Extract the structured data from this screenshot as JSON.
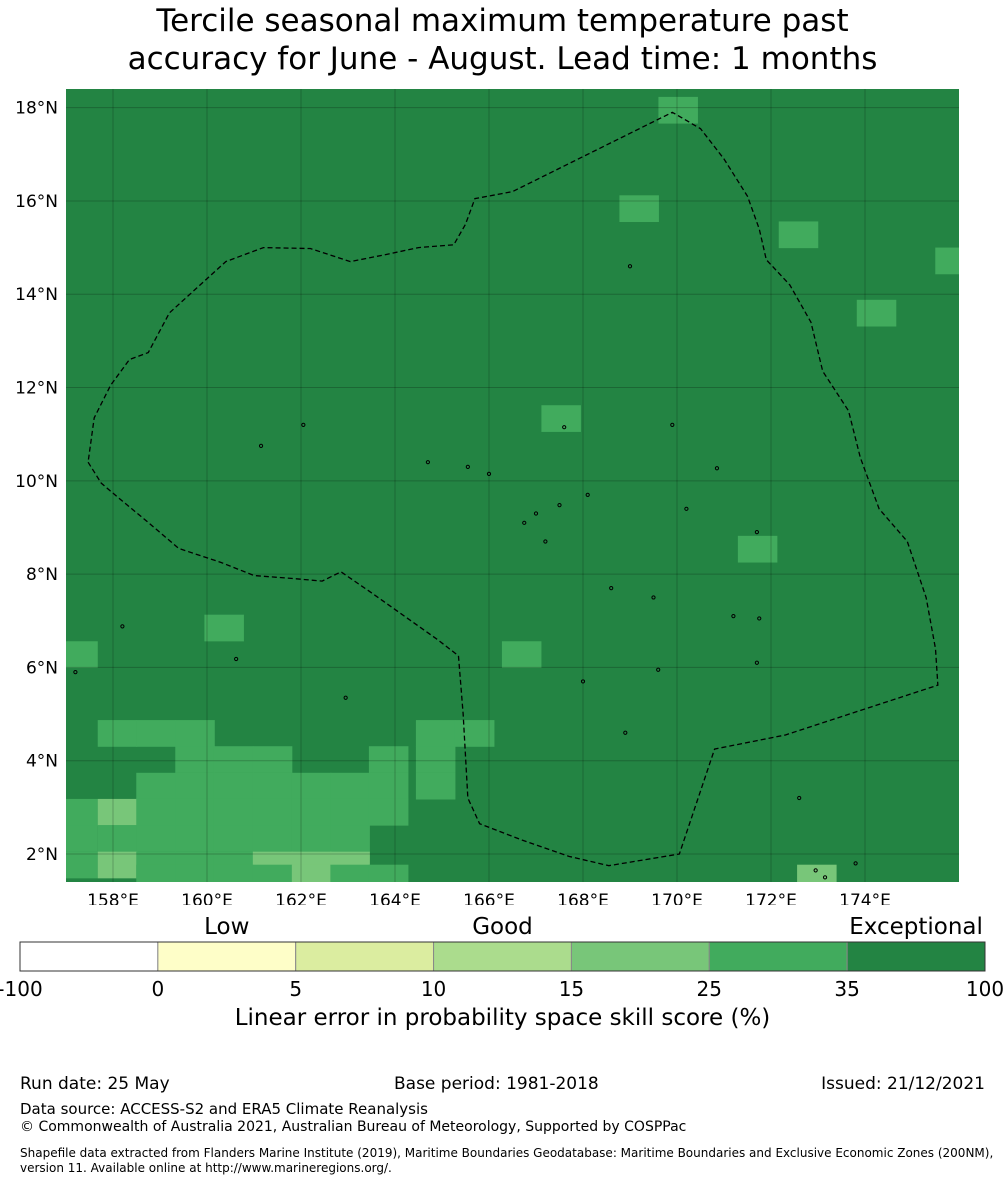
{
  "title_line1": "Tercile seasonal maximum temperature past",
  "title_line2": "accuracy for June - August. Lead time: 1 months",
  "map": {
    "lat_range": [
      1.4,
      18.4
    ],
    "lon_range": [
      157.0,
      176.0
    ],
    "lat_ticks": [
      {
        "value": 2,
        "label": "2°N"
      },
      {
        "value": 4,
        "label": "4°N"
      },
      {
        "value": 6,
        "label": "6°N"
      },
      {
        "value": 8,
        "label": "8°N"
      },
      {
        "value": 10,
        "label": "10°N"
      },
      {
        "value": 12,
        "label": "12°N"
      },
      {
        "value": 14,
        "label": "14°N"
      },
      {
        "value": 16,
        "label": "16°N"
      },
      {
        "value": 18,
        "label": "18°N"
      }
    ],
    "lon_ticks": [
      {
        "value": 158,
        "label": "158°E"
      },
      {
        "value": 160,
        "label": "160°E"
      },
      {
        "value": 162,
        "label": "162°E"
      },
      {
        "value": 164,
        "label": "164°E"
      },
      {
        "value": 166,
        "label": "166°E"
      },
      {
        "value": 168,
        "label": "168°E"
      },
      {
        "value": 170,
        "label": "170°E"
      },
      {
        "value": 172,
        "label": "172°E"
      },
      {
        "value": 174,
        "label": "174°E"
      }
    ],
    "background_class": 6,
    "cells": [
      {
        "lon": 170.02,
        "lat": 17.95,
        "class": 5
      },
      {
        "lon": 169.19,
        "lat": 15.84,
        "class": 5
      },
      {
        "lon": 172.58,
        "lat": 15.28,
        "class": 5
      },
      {
        "lon": 175.91,
        "lat": 14.72,
        "class": 5
      },
      {
        "lon": 174.24,
        "lat": 13.6,
        "class": 5
      },
      {
        "lon": 167.53,
        "lat": 11.34,
        "class": 5
      },
      {
        "lon": 171.71,
        "lat": 8.54,
        "class": 5
      },
      {
        "lon": 160.36,
        "lat": 6.85,
        "class": 5
      },
      {
        "lon": 157.25,
        "lat": 6.28,
        "class": 5
      },
      {
        "lon": 166.69,
        "lat": 6.28,
        "class": 5
      },
      {
        "lon": 158.09,
        "lat": 4.59,
        "class": 5
      },
      {
        "lon": 158.91,
        "lat": 4.59,
        "class": 5
      },
      {
        "lon": 159.74,
        "lat": 4.59,
        "class": 5
      },
      {
        "lon": 164.86,
        "lat": 4.59,
        "class": 5
      },
      {
        "lon": 165.69,
        "lat": 4.59,
        "class": 5
      },
      {
        "lon": 159.74,
        "lat": 4.03,
        "class": 5
      },
      {
        "lon": 160.56,
        "lat": 4.03,
        "class": 5
      },
      {
        "lon": 161.39,
        "lat": 4.03,
        "class": 5
      },
      {
        "lon": 163.86,
        "lat": 4.03,
        "class": 5
      },
      {
        "lon": 164.86,
        "lat": 4.03,
        "class": 5
      },
      {
        "lon": 158.91,
        "lat": 3.46,
        "class": 5
      },
      {
        "lon": 159.74,
        "lat": 3.46,
        "class": 5
      },
      {
        "lon": 160.56,
        "lat": 3.46,
        "class": 5
      },
      {
        "lon": 161.39,
        "lat": 3.46,
        "class": 5
      },
      {
        "lon": 162.22,
        "lat": 3.46,
        "class": 5
      },
      {
        "lon": 163.04,
        "lat": 3.46,
        "class": 5
      },
      {
        "lon": 163.86,
        "lat": 3.46,
        "class": 5
      },
      {
        "lon": 164.86,
        "lat": 3.46,
        "class": 5
      },
      {
        "lon": 157.25,
        "lat": 2.9,
        "class": 5
      },
      {
        "lon": 158.09,
        "lat": 2.9,
        "class": 4
      },
      {
        "lon": 158.91,
        "lat": 2.9,
        "class": 5
      },
      {
        "lon": 159.74,
        "lat": 2.9,
        "class": 5
      },
      {
        "lon": 160.56,
        "lat": 2.9,
        "class": 5
      },
      {
        "lon": 161.39,
        "lat": 2.9,
        "class": 5
      },
      {
        "lon": 162.22,
        "lat": 2.9,
        "class": 5
      },
      {
        "lon": 163.04,
        "lat": 2.9,
        "class": 5
      },
      {
        "lon": 163.86,
        "lat": 2.9,
        "class": 5
      },
      {
        "lon": 157.25,
        "lat": 2.34,
        "class": 5
      },
      {
        "lon": 158.09,
        "lat": 2.34,
        "class": 5
      },
      {
        "lon": 158.91,
        "lat": 2.34,
        "class": 5
      },
      {
        "lon": 159.74,
        "lat": 2.34,
        "class": 5
      },
      {
        "lon": 160.56,
        "lat": 2.34,
        "class": 5
      },
      {
        "lon": 161.39,
        "lat": 2.34,
        "class": 5
      },
      {
        "lon": 162.22,
        "lat": 2.34,
        "class": 5
      },
      {
        "lon": 163.04,
        "lat": 2.34,
        "class": 5
      },
      {
        "lon": 157.25,
        "lat": 1.77,
        "class": 5
      },
      {
        "lon": 158.09,
        "lat": 1.77,
        "class": 4
      },
      {
        "lon": 158.91,
        "lat": 1.77,
        "class": 5
      },
      {
        "lon": 159.74,
        "lat": 1.77,
        "class": 5
      },
      {
        "lon": 160.56,
        "lat": 1.77,
        "class": 5
      },
      {
        "lon": 161.39,
        "lat": 1.77,
        "class": 4
      },
      {
        "lon": 162.22,
        "lat": 1.77,
        "class": 4
      },
      {
        "lon": 163.04,
        "lat": 1.77,
        "class": 4
      },
      {
        "lon": 158.91,
        "lat": 1.49,
        "class": 5
      },
      {
        "lon": 159.74,
        "lat": 1.49,
        "class": 5
      },
      {
        "lon": 160.56,
        "lat": 1.49,
        "class": 5
      },
      {
        "lon": 161.39,
        "lat": 1.49,
        "class": 5
      },
      {
        "lon": 162.22,
        "lat": 1.49,
        "class": 4
      },
      {
        "lon": 163.04,
        "lat": 1.49,
        "class": 5
      },
      {
        "lon": 163.86,
        "lat": 1.49,
        "class": 5
      },
      {
        "lon": 172.97,
        "lat": 1.49,
        "class": 4
      }
    ],
    "boundary": [
      [
        157.47,
        10.4
      ],
      [
        157.75,
        9.95
      ],
      [
        158.1,
        9.65
      ],
      [
        158.7,
        9.15
      ],
      [
        159.4,
        8.55
      ],
      [
        160.3,
        8.25
      ],
      [
        161.0,
        7.97
      ],
      [
        161.9,
        7.9
      ],
      [
        162.45,
        7.85
      ],
      [
        162.85,
        8.05
      ],
      [
        163.5,
        7.6
      ],
      [
        164.2,
        7.1
      ],
      [
        164.9,
        6.6
      ],
      [
        165.35,
        6.25
      ],
      [
        165.45,
        5.0
      ],
      [
        165.55,
        3.2
      ],
      [
        165.8,
        2.65
      ],
      [
        166.7,
        2.3
      ],
      [
        167.7,
        1.95
      ],
      [
        168.55,
        1.75
      ],
      [
        170.05,
        2.0
      ],
      [
        170.8,
        4.25
      ],
      [
        172.3,
        4.55
      ],
      [
        175.55,
        5.62
      ],
      [
        175.5,
        6.4
      ],
      [
        175.3,
        7.5
      ],
      [
        174.9,
        8.7
      ],
      [
        174.3,
        9.4
      ],
      [
        173.9,
        10.5
      ],
      [
        173.65,
        11.5
      ],
      [
        173.1,
        12.35
      ],
      [
        172.85,
        13.4
      ],
      [
        172.4,
        14.2
      ],
      [
        171.9,
        14.74
      ],
      [
        171.75,
        15.4
      ],
      [
        171.5,
        16.1
      ],
      [
        171.0,
        16.9
      ],
      [
        170.5,
        17.55
      ],
      [
        169.9,
        17.9
      ],
      [
        168.9,
        17.4
      ],
      [
        166.5,
        16.2
      ],
      [
        165.7,
        16.05
      ],
      [
        165.5,
        15.5
      ],
      [
        165.25,
        15.06
      ],
      [
        164.5,
        15.0
      ],
      [
        163.8,
        14.85
      ],
      [
        163.05,
        14.7
      ],
      [
        162.2,
        14.98
      ],
      [
        161.2,
        15.0
      ],
      [
        160.4,
        14.7
      ],
      [
        159.8,
        14.15
      ],
      [
        159.2,
        13.6
      ],
      [
        158.75,
        12.75
      ],
      [
        158.35,
        12.6
      ],
      [
        157.95,
        12.05
      ],
      [
        157.6,
        11.35
      ],
      [
        157.47,
        10.4
      ]
    ],
    "islands": [
      [
        158.2,
        6.88
      ],
      [
        160.62,
        6.18
      ],
      [
        162.95,
        5.35
      ],
      [
        165.55,
        10.3
      ],
      [
        164.7,
        10.4
      ],
      [
        161.15,
        10.75
      ],
      [
        166.0,
        10.15
      ],
      [
        167.6,
        11.15
      ],
      [
        169.0,
        14.6
      ],
      [
        169.9,
        11.2
      ],
      [
        170.85,
        10.27
      ],
      [
        168.1,
        9.7
      ],
      [
        167.5,
        9.48
      ],
      [
        167.0,
        9.3
      ],
      [
        166.75,
        9.1
      ],
      [
        167.2,
        8.7
      ],
      [
        170.2,
        9.4
      ],
      [
        171.7,
        8.9
      ],
      [
        171.2,
        7.1
      ],
      [
        171.75,
        7.05
      ],
      [
        172.6,
        3.2
      ],
      [
        173.8,
        1.8
      ],
      [
        169.5,
        7.5
      ],
      [
        168.6,
        7.7
      ],
      [
        169.6,
        5.95
      ],
      [
        168.0,
        5.7
      ],
      [
        168.9,
        4.6
      ],
      [
        171.7,
        6.1
      ],
      [
        157.2,
        5.9
      ],
      [
        162.05,
        11.2
      ],
      [
        172.95,
        1.65
      ],
      [
        173.15,
        1.5
      ]
    ]
  },
  "legend": {
    "categories": [
      {
        "label": "Low",
        "value": 2.5
      },
      {
        "label": "Good",
        "value": 12.5
      },
      {
        "label": "Exceptional",
        "value": 67.5
      }
    ],
    "bins": [
      {
        "from": -100,
        "to": 0,
        "color": "#ffffff"
      },
      {
        "from": 0,
        "to": 5,
        "color": "#fefec8"
      },
      {
        "from": 5,
        "to": 10,
        "color": "#dbeda0"
      },
      {
        "from": 10,
        "to": 15,
        "color": "#abdc8d"
      },
      {
        "from": 15,
        "to": 25,
        "color": "#78c679"
      },
      {
        "from": 25,
        "to": 35,
        "color": "#41ab5d"
      },
      {
        "from": 35,
        "to": 100,
        "color": "#238443"
      }
    ],
    "ticks": [
      "-100",
      "0",
      "5",
      "10",
      "15",
      "25",
      "35",
      "100"
    ],
    "label": "Linear error in probability space skill score (%)"
  },
  "footer": {
    "run_date": "Run date: 25 May",
    "base_period": "Base period: 1981-2018",
    "issued": "Issued: 21/12/2021",
    "data_source": "Data source: ACCESS-S2 and ERA5 Climate Reanalysis",
    "copyright": "© Commonwealth of Australia 2021, Australian Bureau of Meteorology, Supported by COSPPac",
    "shapefile": "Shapefile data extracted from Flanders Marine Institute (2019), Maritime Boundaries Geodatabase: Maritime Boundaries and Exclusive Economic Zones (200NM), version 11. Available online at http://www.marineregions.org/."
  }
}
